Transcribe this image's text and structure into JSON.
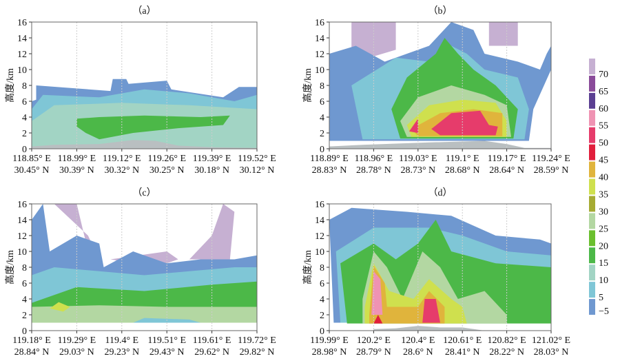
{
  "chart_data": [
    {
      "type": "heatmap",
      "title": "（a）",
      "ylabel": "高度/km",
      "ylim": [
        0,
        16
      ],
      "yticks": [
        0,
        2,
        4,
        6,
        8,
        10,
        12,
        14,
        16
      ],
      "xticks_lon": [
        "118.85° E",
        "118.99° E",
        "119.12° E",
        "119.26° E",
        "119.39° E",
        "119.52° E"
      ],
      "xticks_lat": [
        "30.45° N",
        "30.39° N",
        "30.32° N",
        "30.25° N",
        "30.18° N",
        "30.12° N"
      ]
    },
    {
      "type": "heatmap",
      "title": "（b）",
      "ylabel": "高度/km",
      "ylim": [
        0,
        16
      ],
      "yticks": [
        0,
        2,
        4,
        6,
        8,
        10,
        12,
        14,
        16
      ],
      "xticks_lon": [
        "118.89° E",
        "118.96° E",
        "119.03° E",
        "119.1° E",
        "119.17° E",
        "119.24° E"
      ],
      "xticks_lat": [
        "28.83° N",
        "28.78° N",
        "28.73° N",
        "28.68° N",
        "28.64° N",
        "28.59° N"
      ]
    },
    {
      "type": "heatmap",
      "title": "（c）",
      "ylabel": "高度/km",
      "ylim": [
        0,
        16
      ],
      "yticks": [
        0,
        2,
        4,
        6,
        8,
        10,
        12,
        14,
        16
      ],
      "xticks_lon": [
        "119.18° E",
        "119.29° E",
        "119.4° E",
        "119.51° E",
        "119.61° E",
        "119.72° E"
      ],
      "xticks_lat": [
        "28.84° N",
        "29.03° N",
        "29.23° N",
        "29.43° N",
        "29.62° N",
        "29.82° N"
      ]
    },
    {
      "type": "heatmap",
      "title": "（d）",
      "ylabel": "高度/km",
      "ylim": [
        0,
        16
      ],
      "yticks": [
        0,
        2,
        4,
        6,
        8,
        10,
        12,
        14,
        16
      ],
      "xticks_lon": [
        "119.99° E",
        "120.2° E",
        "120.4° E",
        "120.61° E",
        "120.82° E",
        "121.02° E"
      ],
      "xticks_lat": [
        "28.98° N",
        "28.79° N",
        "28.6° N",
        "28.41° N",
        "28.22° N",
        "28.03° N"
      ]
    }
  ],
  "colorbar": {
    "labels": [
      "−5",
      "5",
      "10",
      "15",
      "20",
      "25",
      "30",
      "35",
      "40",
      "45",
      "50",
      "55",
      "60",
      "65",
      "70"
    ],
    "colors": [
      "#6f98d0",
      "#7fc6d6",
      "#a2d4c4",
      "#4cb848",
      "#6abf2e",
      "#b3d7a2",
      "#a6ab33",
      "#cfe04e",
      "#e0b43c",
      "#e11f3c",
      "#e63c6b",
      "#ef93b3",
      "#5b3f92",
      "#8a4b9a",
      "#c6b0d2"
    ]
  }
}
